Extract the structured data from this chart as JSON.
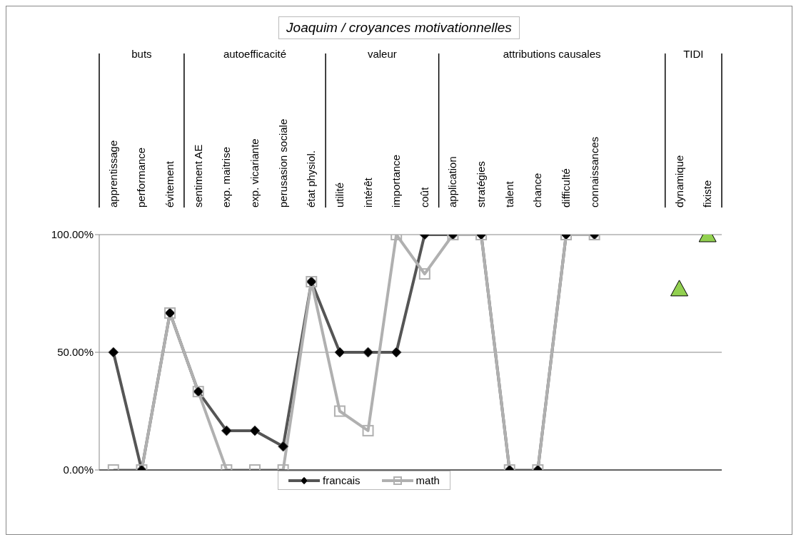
{
  "chart_data": {
    "type": "line",
    "title": "Joaquim / croyances motivationnelles",
    "categories": [
      "apprentissage",
      "performance",
      "évitement",
      "sentiment AE",
      "exp. maitrise",
      "exp. vicariante",
      "perusasion sociale",
      "état physiol.",
      "utilité",
      "intérêt",
      "importance",
      "coût",
      "application",
      "stratégies",
      "talent",
      "chance",
      "difficulté",
      "connaissances",
      null,
      null,
      "dynamique",
      "fixiste"
    ],
    "annotations": [
      "buts",
      "autoefficacité",
      "valeur",
      "attributions causales",
      "TIDI"
    ],
    "series": [
      {
        "name": "francais",
        "color": "#555555",
        "marker": "diamond",
        "values": [
          50,
          0,
          66.7,
          33.3,
          16.7,
          16.7,
          10,
          80,
          50,
          50,
          50,
          100,
          100,
          100,
          0,
          0,
          100,
          100,
          null,
          null,
          null,
          null
        ]
      },
      {
        "name": "math",
        "color": "#b0b0b0",
        "marker": "square",
        "values": [
          0,
          0,
          66.7,
          33.3,
          0,
          0,
          0,
          80,
          25,
          16.7,
          100,
          83.3,
          100,
          100,
          0,
          0,
          100,
          100,
          null,
          null,
          null,
          null
        ]
      },
      {
        "type": "scatter",
        "color": "#92d050",
        "marker": "triangle",
        "values": [
          null,
          null,
          null,
          null,
          null,
          null,
          null,
          null,
          null,
          null,
          null,
          null,
          null,
          null,
          null,
          null,
          null,
          null,
          null,
          null,
          77,
          100
        ]
      }
    ],
    "ylim": [
      0,
      100
    ],
    "yticks": [
      {
        "value": 0,
        "label": "0.00%"
      },
      {
        "value": 50,
        "label": "50.00%"
      },
      {
        "value": 100,
        "label": "100.00%"
      }
    ],
    "grid": "y",
    "legend": "bottom",
    "line_style": "solid"
  }
}
